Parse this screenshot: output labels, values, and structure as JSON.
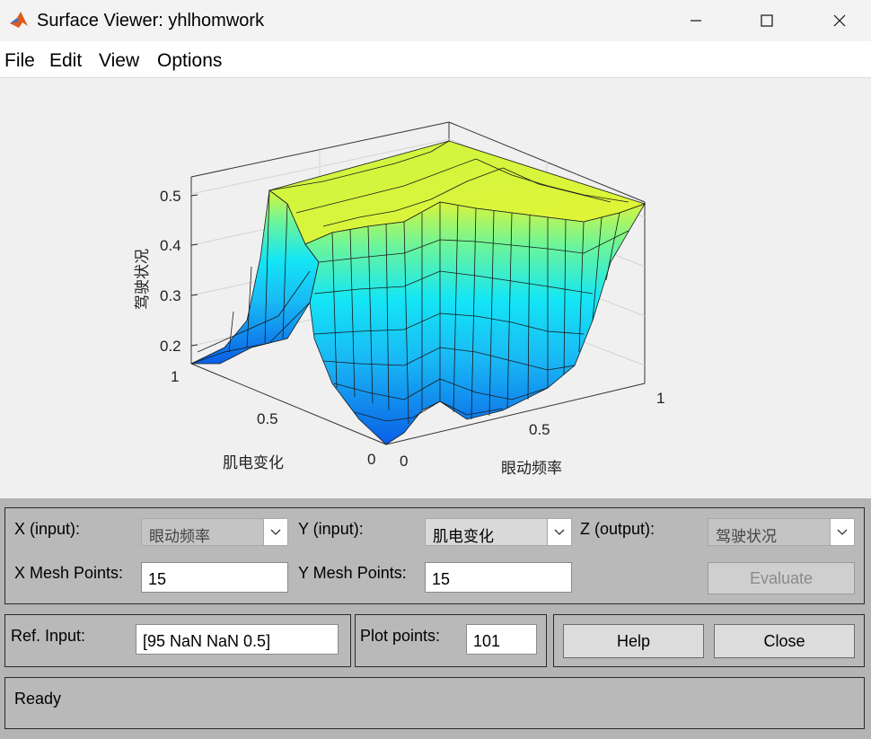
{
  "window": {
    "title": "Surface Viewer: yhlhomwork",
    "controls": {
      "minimize": "minimize-icon",
      "maximize": "maximize-icon",
      "close": "close-icon"
    }
  },
  "menu": {
    "items": [
      "File",
      "Edit",
      "View",
      "Options"
    ]
  },
  "plot": {
    "zlabel": "驾驶状况",
    "xlabel": "眼动频率",
    "ylabel": "肌电变化",
    "z_ticks": [
      "0.5",
      "0.4",
      "0.3",
      "0.2"
    ],
    "x_ticks": [
      "0",
      "0.5",
      "1"
    ],
    "y_ticks": [
      "1",
      "0.5",
      "0"
    ],
    "mesh_points": 15
  },
  "controls": {
    "x_input": {
      "label": "X (input):",
      "value": "眼动频率"
    },
    "y_input": {
      "label": "Y (input):",
      "value": "肌电变化"
    },
    "z_output": {
      "label": "Z (output):",
      "value": "驾驶状况"
    },
    "x_mesh": {
      "label": "X Mesh Points:",
      "value": "15"
    },
    "y_mesh": {
      "label": "Y Mesh Points:",
      "value": "15"
    },
    "evaluate_label": "Evaluate",
    "ref_input": {
      "label": "Ref. Input:",
      "value": "[95 NaN NaN 0.5]"
    },
    "plot_points": {
      "label": "Plot points:",
      "value": "101"
    },
    "help_label": "Help",
    "close_label": "Close"
  },
  "status": {
    "text": "Ready"
  },
  "colors": {
    "accent_low": "#0a5fe6",
    "accent_mid": "#14e6f5",
    "accent_high": "#d8f53c"
  }
}
